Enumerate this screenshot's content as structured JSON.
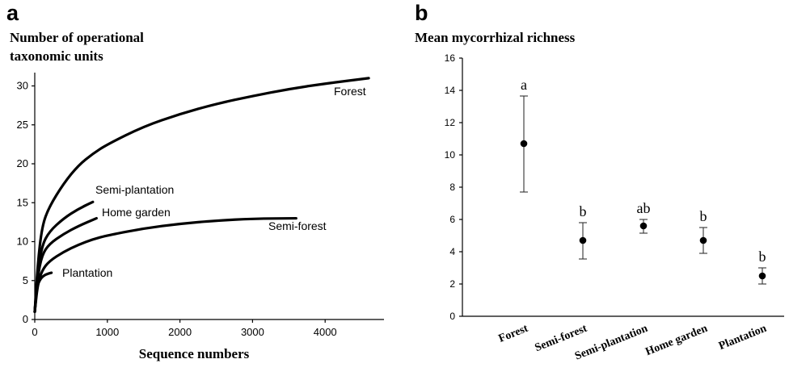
{
  "chart_data": [
    {
      "panel": "a",
      "type": "line",
      "title_lines": [
        "Number of operational",
        "taxonomic units"
      ],
      "xlabel": "Sequence numbers",
      "ylabel": "",
      "xlim": [
        0,
        4800
      ],
      "ylim": [
        0,
        32
      ],
      "xticks": [
        0,
        1000,
        2000,
        3000,
        4000
      ],
      "yticks": [
        0,
        5,
        10,
        15,
        20,
        25,
        30
      ],
      "series": [
        {
          "name": "Forest",
          "x": [
            0,
            40,
            100,
            200,
            400,
            600,
            800,
            1000,
            1500,
            2000,
            2500,
            3000,
            3500,
            4000,
            4600
          ],
          "y": [
            1,
            7,
            12,
            14.5,
            17.5,
            19.8,
            21.3,
            22.5,
            24.8,
            26.4,
            27.7,
            28.7,
            29.6,
            30.3,
            31
          ]
        },
        {
          "name": "Semi-plantation",
          "x": [
            0,
            40,
            100,
            200,
            400,
            600,
            800
          ],
          "y": [
            1,
            6,
            9.5,
            11.3,
            13,
            14.2,
            15.1
          ]
        },
        {
          "name": "Home garden",
          "x": [
            0,
            40,
            100,
            200,
            400,
            600,
            850
          ],
          "y": [
            1,
            5.5,
            8.3,
            9.7,
            11,
            12,
            13
          ]
        },
        {
          "name": "Semi-forest",
          "x": [
            0,
            40,
            100,
            200,
            400,
            600,
            800,
            1000,
            1500,
            2000,
            2500,
            3000,
            3600
          ],
          "y": [
            1,
            4.5,
            6.3,
            7.5,
            8.7,
            9.6,
            10.3,
            10.8,
            11.7,
            12.3,
            12.7,
            12.95,
            13
          ]
        },
        {
          "name": "Plantation",
          "x": [
            0,
            30,
            80,
            150,
            230
          ],
          "y": [
            1,
            4.2,
            5.3,
            5.8,
            6
          ]
        }
      ]
    },
    {
      "panel": "b",
      "type": "scatter",
      "title": "Mean mycorrhizal richness",
      "xlabel": "",
      "ylabel": "",
      "ylim": [
        0,
        16
      ],
      "yticks": [
        0,
        2,
        4,
        6,
        8,
        10,
        12,
        14,
        16
      ],
      "categories": [
        "Forest",
        "Semi-forest",
        "Semi-plantation",
        "Home garden",
        "Plantation"
      ],
      "values": [
        10.7,
        4.7,
        5.6,
        4.7,
        2.5
      ],
      "error_low": [
        7.7,
        3.55,
        5.15,
        3.9,
        2.0
      ],
      "error_high": [
        13.65,
        5.8,
        6.0,
        5.5,
        3.0
      ],
      "significance": [
        "a",
        "b",
        "ab",
        "b",
        "b"
      ]
    }
  ]
}
